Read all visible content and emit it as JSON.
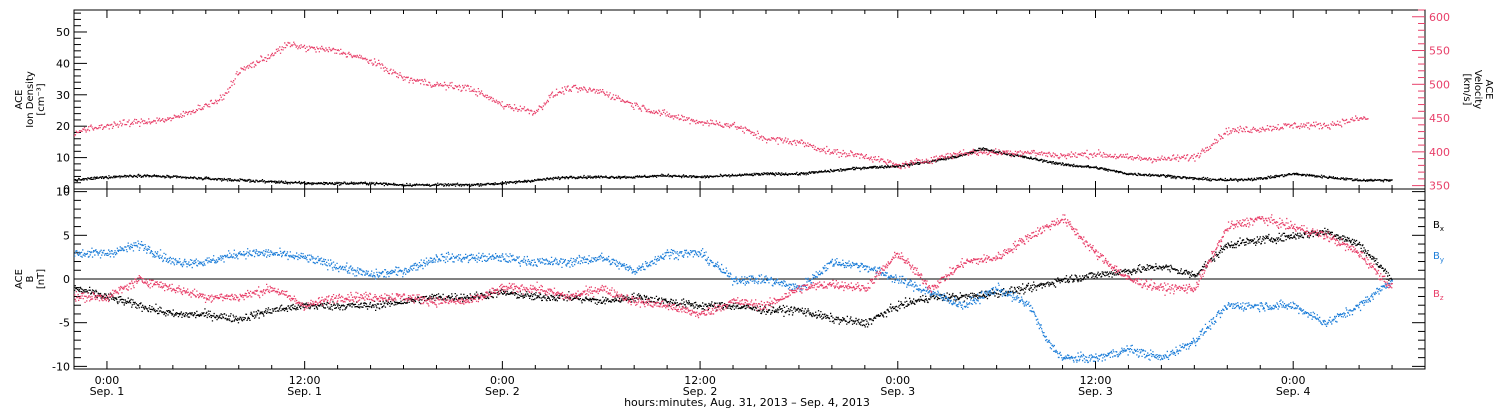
{
  "chart_data": [
    {
      "type": "scatter",
      "left_axis": {
        "label_lines": [
          "ACE",
          "Ion Density",
          "[cm⁻³]"
        ],
        "ylim": [
          0,
          57
        ],
        "ticks": [
          0,
          10,
          20,
          30,
          40,
          50
        ]
      },
      "right_axis": {
        "label_lines": [
          "ACE",
          "Velocity",
          "[km/s]"
        ],
        "ylim": [
          345,
          610
        ],
        "ticks": [
          350,
          400,
          450,
          500,
          550,
          600
        ]
      },
      "series": [
        {
          "axis": "left",
          "color": "#000000",
          "anchors": [
            [
              -2,
              3
            ],
            [
              0,
              4
            ],
            [
              2,
              4.5
            ],
            [
              4,
              4
            ],
            [
              6,
              3.5
            ],
            [
              8,
              3
            ],
            [
              10,
              2.5
            ],
            [
              12,
              2
            ],
            [
              14,
              2
            ],
            [
              16,
              2
            ],
            [
              18,
              1.5
            ],
            [
              20,
              1.5
            ],
            [
              22,
              1.5
            ],
            [
              24,
              2
            ],
            [
              26,
              3
            ],
            [
              28,
              4
            ],
            [
              30,
              4
            ],
            [
              32,
              4
            ],
            [
              34,
              4.5
            ],
            [
              36,
              4
            ],
            [
              38,
              4.5
            ],
            [
              40,
              5
            ],
            [
              42,
              5
            ],
            [
              44,
              6
            ],
            [
              46,
              7
            ],
            [
              48,
              7.5
            ],
            [
              50,
              9
            ],
            [
              52,
              11
            ],
            [
              53,
              13
            ],
            [
              54,
              12
            ],
            [
              56,
              10
            ],
            [
              58,
              8
            ],
            [
              60,
              7
            ],
            [
              62,
              5
            ],
            [
              64,
              4.5
            ],
            [
              66,
              3.5
            ],
            [
              68,
              3
            ],
            [
              70,
              3.5
            ],
            [
              72,
              5
            ],
            [
              74,
              4
            ],
            [
              76,
              3
            ],
            [
              78,
              3
            ]
          ]
        },
        {
          "axis": "right",
          "color": "#e8406a",
          "anchors": [
            [
              -2,
              430
            ],
            [
              0,
              440
            ],
            [
              2,
              445
            ],
            [
              4,
              450
            ],
            [
              6,
              470
            ],
            [
              7,
              480
            ],
            [
              8,
              520
            ],
            [
              10,
              545
            ],
            [
              11,
              560
            ],
            [
              12,
              555
            ],
            [
              14,
              550
            ],
            [
              16,
              535
            ],
            [
              18,
              510
            ],
            [
              20,
              500
            ],
            [
              22,
              495
            ],
            [
              24,
              470
            ],
            [
              26,
              460
            ],
            [
              27,
              485
            ],
            [
              28,
              495
            ],
            [
              30,
              490
            ],
            [
              32,
              470
            ],
            [
              34,
              455
            ],
            [
              36,
              445
            ],
            [
              38,
              440
            ],
            [
              40,
              420
            ],
            [
              42,
              415
            ],
            [
              44,
              400
            ],
            [
              46,
              395
            ],
            [
              48,
              380
            ],
            [
              50,
              390
            ],
            [
              52,
              400
            ],
            [
              54,
              400
            ],
            [
              56,
              400
            ],
            [
              58,
              395
            ],
            [
              60,
              398
            ],
            [
              62,
              392
            ],
            [
              64,
              390
            ],
            [
              66,
              393
            ],
            [
              68,
              432
            ],
            [
              70,
              435
            ],
            [
              72,
              440
            ],
            [
              74,
              440
            ],
            [
              76,
              450
            ]
          ]
        }
      ]
    },
    {
      "type": "scatter",
      "axis": {
        "label_lines": [
          "ACE",
          "B",
          "[nT]"
        ],
        "ylim": [
          -10.3,
          10.3
        ],
        "ticks": [
          -10,
          -5,
          0,
          5,
          10
        ]
      },
      "series": [
        {
          "name": "B",
          "sub": "x",
          "color": "#000000",
          "anchors": [
            [
              -2,
              -1
            ],
            [
              0,
              -2
            ],
            [
              2,
              -3
            ],
            [
              4,
              -4
            ],
            [
              6,
              -4
            ],
            [
              8,
              -4.5
            ],
            [
              10,
              -3.5
            ],
            [
              12,
              -3
            ],
            [
              14,
              -3
            ],
            [
              16,
              -3
            ],
            [
              18,
              -2.5
            ],
            [
              20,
              -2
            ],
            [
              22,
              -2
            ],
            [
              24,
              -1.5
            ],
            [
              26,
              -2
            ],
            [
              28,
              -2
            ],
            [
              30,
              -2.5
            ],
            [
              32,
              -2
            ],
            [
              34,
              -2.5
            ],
            [
              36,
              -3
            ],
            [
              38,
              -3
            ],
            [
              40,
              -3.5
            ],
            [
              42,
              -3.5
            ],
            [
              44,
              -4.5
            ],
            [
              46,
              -5
            ],
            [
              48,
              -3
            ],
            [
              50,
              -2
            ],
            [
              52,
              -2
            ],
            [
              54,
              -1.5
            ],
            [
              56,
              -1
            ],
            [
              58,
              0
            ],
            [
              60,
              0.5
            ],
            [
              62,
              1
            ],
            [
              64,
              1.5
            ],
            [
              66,
              0.5
            ],
            [
              68,
              4
            ],
            [
              70,
              4.5
            ],
            [
              72,
              5
            ],
            [
              74,
              5.5
            ],
            [
              76,
              4
            ],
            [
              78,
              0
            ]
          ]
        },
        {
          "name": "B",
          "sub": "y",
          "color": "#1f7fd9",
          "anchors": [
            [
              -2,
              3
            ],
            [
              0,
              3
            ],
            [
              2,
              4
            ],
            [
              4,
              2
            ],
            [
              6,
              2
            ],
            [
              8,
              3
            ],
            [
              10,
              3
            ],
            [
              12,
              2.5
            ],
            [
              14,
              1.5
            ],
            [
              16,
              0.5
            ],
            [
              18,
              1
            ],
            [
              20,
              2.5
            ],
            [
              22,
              2.5
            ],
            [
              24,
              2.5
            ],
            [
              26,
              2
            ],
            [
              28,
              2
            ],
            [
              30,
              2.5
            ],
            [
              32,
              1
            ],
            [
              34,
              3
            ],
            [
              36,
              3
            ],
            [
              38,
              0
            ],
            [
              40,
              0
            ],
            [
              42,
              -1
            ],
            [
              44,
              2
            ],
            [
              46,
              1.5
            ],
            [
              48,
              0
            ],
            [
              50,
              -1.5
            ],
            [
              52,
              -3
            ],
            [
              54,
              -1
            ],
            [
              56,
              -3
            ],
            [
              57,
              -7
            ],
            [
              58,
              -9
            ],
            [
              60,
              -9
            ],
            [
              62,
              -8
            ],
            [
              64,
              -9
            ],
            [
              66,
              -7
            ],
            [
              68,
              -3
            ],
            [
              70,
              -3
            ],
            [
              72,
              -3
            ],
            [
              74,
              -5
            ],
            [
              76,
              -3
            ],
            [
              78,
              0
            ]
          ]
        },
        {
          "name": "B",
          "sub": "z",
          "color": "#e8406a",
          "anchors": [
            [
              -2,
              -2
            ],
            [
              0,
              -2
            ],
            [
              2,
              0
            ],
            [
              4,
              -1
            ],
            [
              6,
              -2
            ],
            [
              8,
              -2
            ],
            [
              10,
              -1
            ],
            [
              12,
              -3
            ],
            [
              14,
              -2
            ],
            [
              16,
              -2
            ],
            [
              18,
              -2
            ],
            [
              20,
              -2.5
            ],
            [
              22,
              -2.5
            ],
            [
              24,
              -1
            ],
            [
              26,
              -1
            ],
            [
              28,
              -2
            ],
            [
              30,
              -1
            ],
            [
              32,
              -2.5
            ],
            [
              34,
              -3
            ],
            [
              36,
              -4
            ],
            [
              38,
              -2.5
            ],
            [
              40,
              -3
            ],
            [
              42,
              -1
            ],
            [
              44,
              -0.5
            ],
            [
              46,
              -1
            ],
            [
              48,
              3
            ],
            [
              50,
              -1
            ],
            [
              52,
              2
            ],
            [
              54,
              2.5
            ],
            [
              56,
              5
            ],
            [
              58,
              7
            ],
            [
              60,
              3
            ],
            [
              62,
              0
            ],
            [
              64,
              -1
            ],
            [
              66,
              -1
            ],
            [
              68,
              6
            ],
            [
              70,
              7
            ],
            [
              72,
              6
            ],
            [
              74,
              5
            ],
            [
              76,
              3
            ],
            [
              78,
              -1
            ]
          ]
        }
      ]
    }
  ],
  "x_axis": {
    "hour_range": [
      -2,
      80
    ],
    "ticks": [
      {
        "hours": 0,
        "time": "0:00",
        "date": "Sep. 1"
      },
      {
        "hours": 12,
        "time": "12:00",
        "date": "Sep. 1"
      },
      {
        "hours": 24,
        "time": "0:00",
        "date": "Sep. 2"
      },
      {
        "hours": 36,
        "time": "12:00",
        "date": "Sep. 2"
      },
      {
        "hours": 48,
        "time": "0:00",
        "date": "Sep. 3"
      },
      {
        "hours": 60,
        "time": "12:00",
        "date": "Sep. 3"
      },
      {
        "hours": 72,
        "time": "0:00",
        "date": "Sep. 4"
      }
    ],
    "title": "hours:minutes, Aug. 31, 2013 – Sep. 4, 2013"
  }
}
